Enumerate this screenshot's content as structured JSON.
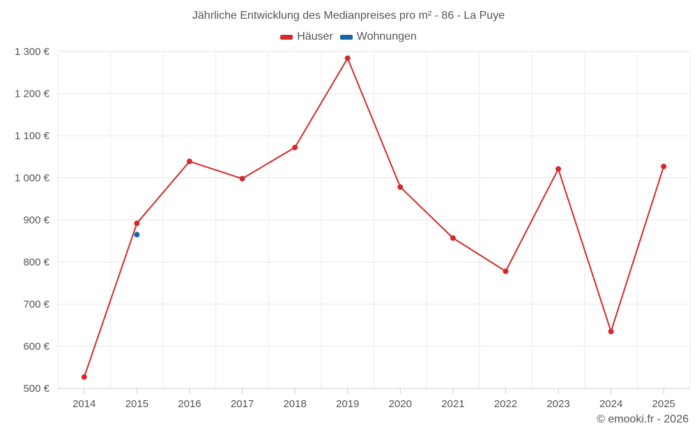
{
  "chart_data": {
    "type": "line",
    "title": "Jährliche Entwicklung des Medianpreises pro m² - 86 - La Puye",
    "categories": [
      "2014",
      "2015",
      "2016",
      "2017",
      "2018",
      "2019",
      "2020",
      "2021",
      "2022",
      "2023",
      "2024",
      "2025"
    ],
    "series": [
      {
        "name": "Häuser",
        "color": "#d42a2a",
        "values": [
          527,
          892,
          1039,
          998,
          1072,
          1284,
          978,
          857,
          778,
          1021,
          635,
          1027
        ]
      },
      {
        "name": "Wohnungen",
        "color": "#1566a6",
        "values": [
          null,
          865,
          null,
          null,
          null,
          null,
          null,
          null,
          null,
          null,
          null,
          null
        ]
      }
    ],
    "ylim": [
      500,
      1300
    ],
    "yticks": [
      500,
      600,
      700,
      800,
      900,
      1000,
      1100,
      1200,
      1300
    ],
    "ytick_labels": [
      "500 €",
      "600 €",
      "700 €",
      "800 €",
      "900 €",
      "1 000 €",
      "1 100 €",
      "1 200 €",
      "1 300 €"
    ],
    "grid": true,
    "legend_position": "top-center"
  },
  "credit": "© emooki.fr - 2026"
}
